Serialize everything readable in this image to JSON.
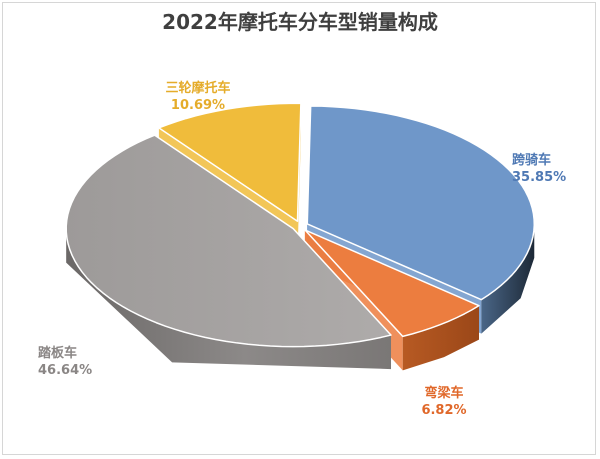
{
  "chart_data": {
    "type": "pie",
    "title": "2022年摩托车分车型销量构成",
    "slices": [
      {
        "label": "跨骑车",
        "value": 35.85,
        "value_label": "35.85%",
        "color": "#6f97c9"
      },
      {
        "label": "弯梁车",
        "value": 6.82,
        "value_label": "6.82%",
        "color": "#ec7d3f"
      },
      {
        "label": "踏板车",
        "value": 46.64,
        "value_label": "46.64%",
        "color": "#a8a5a4"
      },
      {
        "label": "三轮摩托车",
        "value": 10.69,
        "value_label": "10.69%",
        "color": "#f0bc3b"
      }
    ]
  }
}
